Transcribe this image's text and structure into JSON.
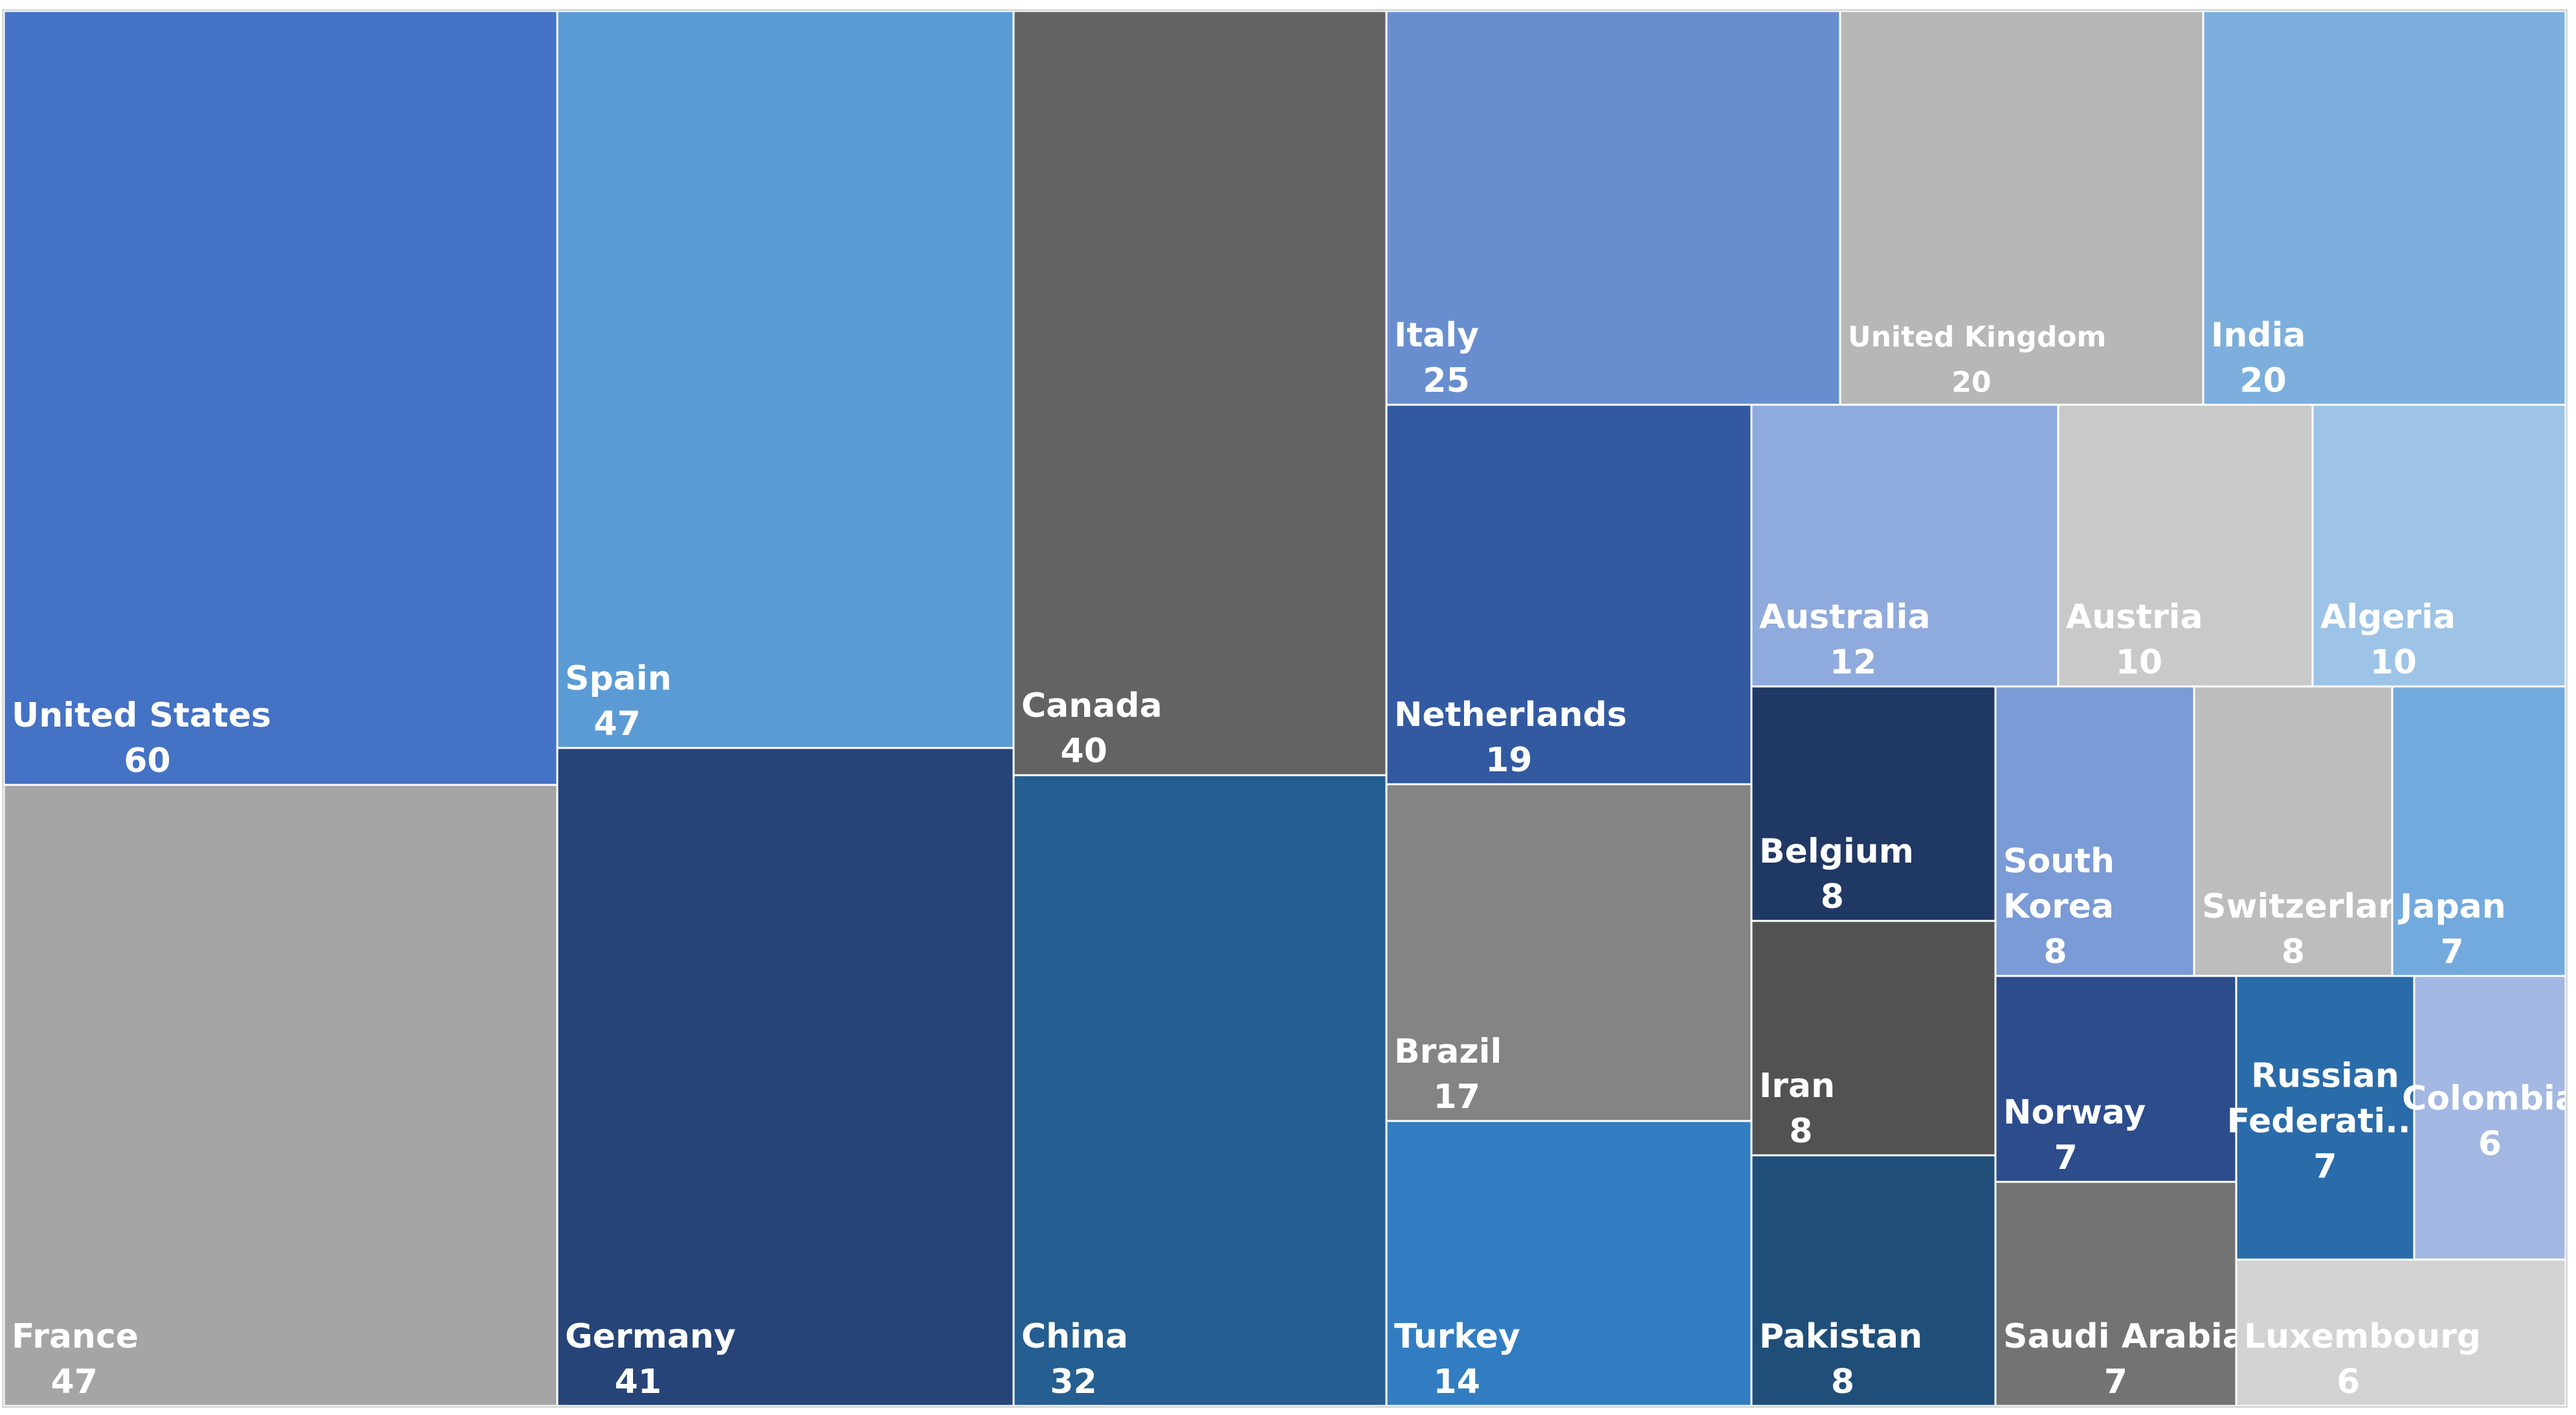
{
  "chart_data": {
    "type": "treemap",
    "series": [
      {
        "name": "United States",
        "value": 60,
        "color": "#4472C4"
      },
      {
        "name": "France",
        "value": 47,
        "color": "#A5A5A5"
      },
      {
        "name": "Spain",
        "value": 47,
        "color": "#5B9BD5"
      },
      {
        "name": "Germany",
        "value": 41,
        "color": "#264478"
      },
      {
        "name": "Canada",
        "value": 40,
        "color": "#636363"
      },
      {
        "name": "China",
        "value": 32,
        "color": "#255E91"
      },
      {
        "name": "Italy",
        "value": 25,
        "color": "#698ED0"
      },
      {
        "name": "United Kingdom",
        "value": 20,
        "color": "#B7B7B7"
      },
      {
        "name": "India",
        "value": 20,
        "color": "#7CAFDD"
      },
      {
        "name": "Netherlands",
        "value": 19,
        "color": "#335AA1"
      },
      {
        "name": "Brazil",
        "value": 17,
        "color": "#848484"
      },
      {
        "name": "Turkey",
        "value": 14,
        "color": "#327DC2"
      },
      {
        "name": "Australia",
        "value": 12,
        "color": "#8FAADC"
      },
      {
        "name": "Austria",
        "value": 10,
        "color": "#C9C9C9"
      },
      {
        "name": "Algeria",
        "value": 10,
        "color": "#9DC3E6"
      },
      {
        "name": "Belgium",
        "value": 8,
        "color": "#203864"
      },
      {
        "name": "Iran",
        "value": 8,
        "color": "#525252"
      },
      {
        "name": "Pakistan",
        "value": 8,
        "color": "#1F4E79"
      },
      {
        "name": "South Korea",
        "value": 8,
        "color": "#7B9BD6"
      },
      {
        "name": "Switzerland",
        "value": 8,
        "color": "#BDBDBD"
      },
      {
        "name": "Japan",
        "value": 7,
        "color": "#73AADE"
      },
      {
        "name": "Norway",
        "value": 7,
        "color": "#2C4C8C"
      },
      {
        "name": "Saudi Arabia",
        "value": 7,
        "color": "#737373"
      },
      {
        "name": "Russian Federati...",
        "value": 7,
        "color": "#2A6BAA"
      },
      {
        "name": "Colombia",
        "value": 6,
        "color": "#A2B8E2"
      },
      {
        "name": "Luxembourg",
        "value": 6,
        "color": "#D3D3D3"
      }
    ],
    "title": "",
    "legend": "none"
  }
}
